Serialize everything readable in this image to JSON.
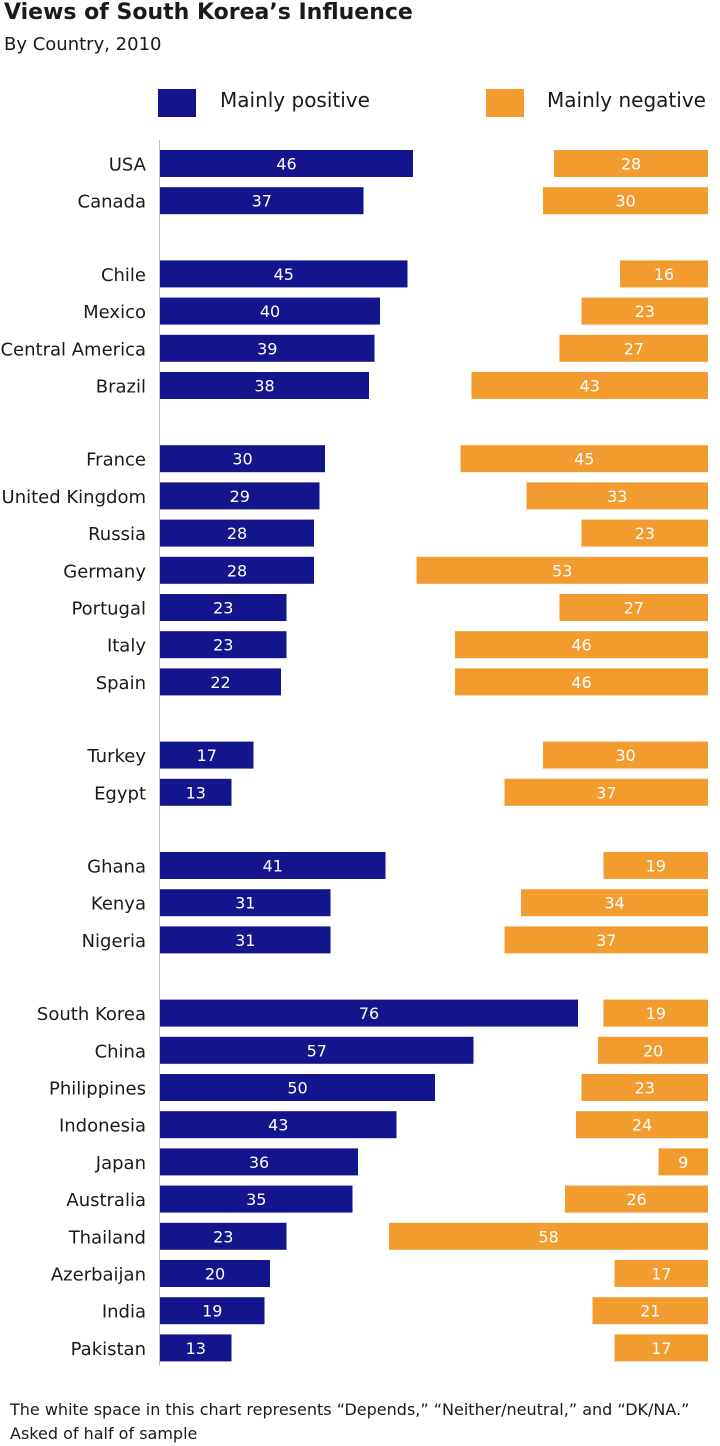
{
  "title": "Views of South Korea’s Influence",
  "subtitle": "By Country, 2010",
  "colors": {
    "positive": "#14148c",
    "negative": "#f29b2f",
    "axis": "#bfbfbf",
    "label_text": "#ffffff"
  },
  "legend": {
    "positive_label": "Mainly positive",
    "negative_label": "Mainly negative"
  },
  "chart_data": {
    "type": "bar",
    "orientation": "horizontal",
    "title": "Views of South Korea’s Influence",
    "subtitle": "By Country, 2010",
    "series_names": [
      "Mainly positive",
      "Mainly negative"
    ],
    "groups": [
      {
        "rows": [
          {
            "country": "USA",
            "positive": 46,
            "negative": 28
          },
          {
            "country": "Canada",
            "positive": 37,
            "negative": 30
          }
        ]
      },
      {
        "rows": [
          {
            "country": "Chile",
            "positive": 45,
            "negative": 16
          },
          {
            "country": "Mexico",
            "positive": 40,
            "negative": 23
          },
          {
            "country": "Central America",
            "positive": 39,
            "negative": 27
          },
          {
            "country": "Brazil",
            "positive": 38,
            "negative": 43
          }
        ]
      },
      {
        "rows": [
          {
            "country": "France",
            "positive": 30,
            "negative": 45
          },
          {
            "country": "United Kingdom",
            "positive": 29,
            "negative": 33
          },
          {
            "country": "Russia",
            "positive": 28,
            "negative": 23
          },
          {
            "country": "Germany",
            "positive": 28,
            "negative": 53
          },
          {
            "country": "Portugal",
            "positive": 23,
            "negative": 27
          },
          {
            "country": "Italy",
            "positive": 23,
            "negative": 46
          },
          {
            "country": "Spain",
            "positive": 22,
            "negative": 46
          }
        ]
      },
      {
        "rows": [
          {
            "country": "Turkey",
            "positive": 17,
            "negative": 30
          },
          {
            "country": "Egypt",
            "positive": 13,
            "negative": 37
          }
        ]
      },
      {
        "rows": [
          {
            "country": "Ghana",
            "positive": 41,
            "negative": 19
          },
          {
            "country": "Kenya",
            "positive": 31,
            "negative": 34
          },
          {
            "country": "Nigeria",
            "positive": 31,
            "negative": 37
          }
        ]
      },
      {
        "rows": [
          {
            "country": "South Korea",
            "positive": 76,
            "negative": 19
          },
          {
            "country": "China",
            "positive": 57,
            "negative": 20
          },
          {
            "country": "Philippines",
            "positive": 50,
            "negative": 23
          },
          {
            "country": "Indonesia",
            "positive": 43,
            "negative": 24
          },
          {
            "country": "Japan",
            "positive": 36,
            "negative": 9
          },
          {
            "country": "Australia",
            "positive": 35,
            "negative": 26
          },
          {
            "country": "Thailand",
            "positive": 23,
            "negative": 58
          },
          {
            "country": "Azerbaijan",
            "positive": 20,
            "negative": 17
          },
          {
            "country": "India",
            "positive": 19,
            "negative": 21
          },
          {
            "country": "Pakistan",
            "positive": 13,
            "negative": 17
          }
        ]
      }
    ],
    "xlim": [
      0,
      100
    ],
    "grid": false,
    "legend_position": "top"
  },
  "notes": {
    "line1": "The white space in this chart represents “Depends,” “Neither/neutral,” and “DK/NA.”",
    "line2": "Asked of half of sample"
  }
}
